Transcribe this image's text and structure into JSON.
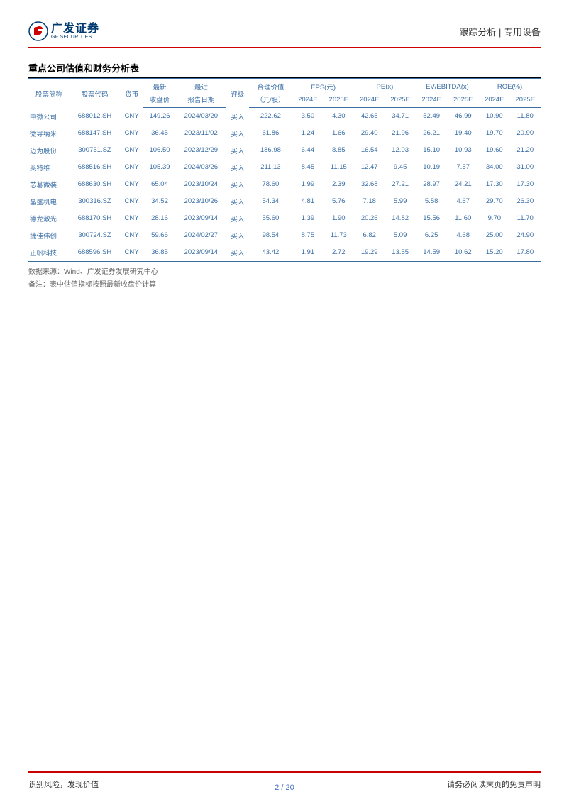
{
  "header": {
    "logo_cn": "广发证券",
    "logo_en": "GF SECURITIES",
    "right_text": "跟踪分析 | 专用设备"
  },
  "section_title": "重点公司估值和财务分析表",
  "table": {
    "head_row1": {
      "c0": "股票简称",
      "c1": "股票代码",
      "c2": "货币",
      "c3": "最新",
      "c4": "最近",
      "c5": "评级",
      "c6": "合理价值",
      "c7": "EPS(元)",
      "c8": "PE(x)",
      "c9": "EV/EBITDA(x)",
      "c10": "ROE(%)"
    },
    "head_row2": {
      "c3": "收盘价",
      "c4": "报告日期",
      "c6": "（元/股）",
      "c7a": "2024E",
      "c7b": "2025E",
      "c8a": "2024E",
      "c8b": "2025E",
      "c9a": "2024E",
      "c9b": "2025E",
      "c10a": "2024E",
      "c10b": "2025E"
    },
    "rows": [
      {
        "name": "中微公司",
        "code": "688012.SH",
        "ccy": "CNY",
        "price": "149.26",
        "date": "2024/03/20",
        "rating": "买入",
        "fair": "222.62",
        "eps24": "3.50",
        "eps25": "4.30",
        "pe24": "42.65",
        "pe25": "34.71",
        "ev24": "52.49",
        "ev25": "46.99",
        "roe24": "10.90",
        "roe25": "11.80"
      },
      {
        "name": "微导纳米",
        "code": "688147.SH",
        "ccy": "CNY",
        "price": "36.45",
        "date": "2023/11/02",
        "rating": "买入",
        "fair": "61.86",
        "eps24": "1.24",
        "eps25": "1.66",
        "pe24": "29.40",
        "pe25": "21.96",
        "ev24": "26.21",
        "ev25": "19.40",
        "roe24": "19.70",
        "roe25": "20.90"
      },
      {
        "name": "迈为股份",
        "code": "300751.SZ",
        "ccy": "CNY",
        "price": "106.50",
        "date": "2023/12/29",
        "rating": "买入",
        "fair": "186.98",
        "eps24": "6.44",
        "eps25": "8.85",
        "pe24": "16.54",
        "pe25": "12.03",
        "ev24": "15.10",
        "ev25": "10.93",
        "roe24": "19.60",
        "roe25": "21.20"
      },
      {
        "name": "奥特维",
        "code": "688516.SH",
        "ccy": "CNY",
        "price": "105.39",
        "date": "2024/03/26",
        "rating": "买入",
        "fair": "211.13",
        "eps24": "8.45",
        "eps25": "11.15",
        "pe24": "12.47",
        "pe25": "9.45",
        "ev24": "10.19",
        "ev25": "7.57",
        "roe24": "34.00",
        "roe25": "31.00"
      },
      {
        "name": "芯碁微装",
        "code": "688630.SH",
        "ccy": "CNY",
        "price": "65.04",
        "date": "2023/10/24",
        "rating": "买入",
        "fair": "78.60",
        "eps24": "1.99",
        "eps25": "2.39",
        "pe24": "32.68",
        "pe25": "27.21",
        "ev24": "28.97",
        "ev25": "24.21",
        "roe24": "17.30",
        "roe25": "17.30"
      },
      {
        "name": "晶盛机电",
        "code": "300316.SZ",
        "ccy": "CNY",
        "price": "34.52",
        "date": "2023/10/26",
        "rating": "买入",
        "fair": "54.34",
        "eps24": "4.81",
        "eps25": "5.76",
        "pe24": "7.18",
        "pe25": "5.99",
        "ev24": "5.58",
        "ev25": "4.67",
        "roe24": "29.70",
        "roe25": "26.30"
      },
      {
        "name": "德龙激光",
        "code": "688170.SH",
        "ccy": "CNY",
        "price": "28.16",
        "date": "2023/09/14",
        "rating": "买入",
        "fair": "55.60",
        "eps24": "1.39",
        "eps25": "1.90",
        "pe24": "20.26",
        "pe25": "14.82",
        "ev24": "15.56",
        "ev25": "11.60",
        "roe24": "9.70",
        "roe25": "11.70"
      },
      {
        "name": "捷佳伟创",
        "code": "300724.SZ",
        "ccy": "CNY",
        "price": "59.66",
        "date": "2024/02/27",
        "rating": "买入",
        "fair": "98.54",
        "eps24": "8.75",
        "eps25": "11.73",
        "pe24": "6.82",
        "pe25": "5.09",
        "ev24": "6.25",
        "ev25": "4.68",
        "roe24": "25.00",
        "roe25": "24.90"
      },
      {
        "name": "正帆科技",
        "code": "688596.SH",
        "ccy": "CNY",
        "price": "36.85",
        "date": "2023/09/14",
        "rating": "买入",
        "fair": "43.42",
        "eps24": "1.91",
        "eps25": "2.72",
        "pe24": "19.29",
        "pe25": "13.55",
        "ev24": "14.59",
        "ev25": "10.62",
        "roe24": "15.20",
        "roe25": "17.80"
      }
    ]
  },
  "notes": {
    "line1": "数据来源：Wind、广发证券发展研究中心",
    "line2": "备注：表中估值指标按照最新收盘价计算"
  },
  "footer": {
    "left": "识别风险，发现价值",
    "right": "请务必阅读末页的免责声明",
    "page_current": "2",
    "page_sep": " / ",
    "page_total": "20"
  },
  "colors": {
    "accent_red": "#cc0000",
    "table_blue": "#3a6ea5",
    "logo_blue": "#003a70"
  }
}
